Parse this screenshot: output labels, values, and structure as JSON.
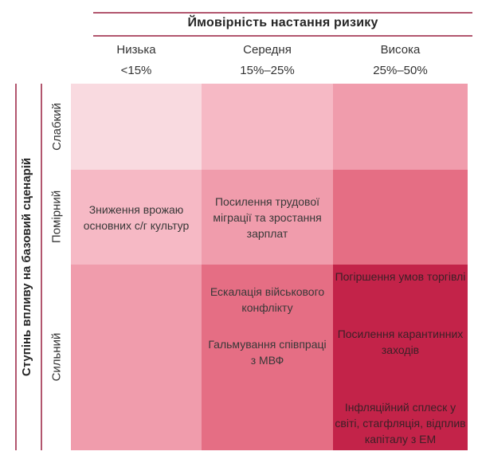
{
  "chart_data": {
    "type": "heatmap",
    "title": "Ймовірність настання ризику",
    "ylabel": "Ступінь впливу на базовий сценарій",
    "x_categories": [
      "Низька",
      "Середня",
      "Висока"
    ],
    "x_ranges": [
      "<15%",
      "15%–25%",
      "25%–50%"
    ],
    "y_categories": [
      "Слабкий",
      "Помірний",
      "Сильний"
    ],
    "severity_matrix_rows_weak_to_strong": [
      [
        1,
        2,
        3
      ],
      [
        2,
        3,
        4
      ],
      [
        3,
        4,
        5
      ]
    ],
    "legend_position": "none",
    "grid": false,
    "cells": [
      {
        "row": "Помірний",
        "col": "Низька",
        "risks": [
          "Зниження врожаю основних с/г культур"
        ]
      },
      {
        "row": "Помірний",
        "col": "Середня",
        "risks": [
          "Посилення трудової міграції та зростання зарплат"
        ]
      },
      {
        "row": "Сильний",
        "col": "Середня",
        "risks": [
          "Ескалація військового конфлікту",
          "Гальмування співпраці з МВФ"
        ]
      },
      {
        "row": "Сильний",
        "col": "Висока",
        "risks": [
          "Погіршення умов торгівлі",
          "Посилення карантинних заходів",
          "Інфляційний сплеск у світі, стагфляція, відплив капіталу з ЕМ"
        ]
      }
    ],
    "colors": {
      "level1": "#f9dae0",
      "level2": "#f6b9c5",
      "level3": "#f09cac",
      "level4": "#e56e84",
      "level5": "#c32349",
      "axis_line": "#b2566e",
      "text": "#383838"
    }
  }
}
